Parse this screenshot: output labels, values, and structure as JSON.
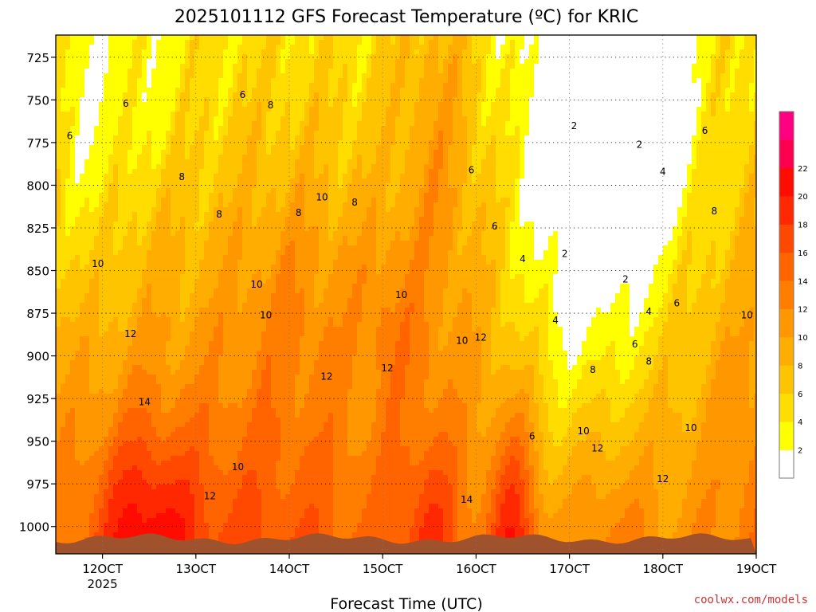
{
  "chart_data": {
    "type": "heatmap",
    "title": "2025101112 GFS Forecast Temperature (ºC) for KRIC",
    "xlabel": "Forecast Time (UTC)",
    "ylabel": "",
    "x_ticks": [
      {
        "label": "12OCT",
        "sub": "2025",
        "day": 12
      },
      {
        "label": "13OCT",
        "sub": "",
        "day": 13
      },
      {
        "label": "14OCT",
        "sub": "",
        "day": 14
      },
      {
        "label": "15OCT",
        "sub": "",
        "day": 15
      },
      {
        "label": "16OCT",
        "sub": "",
        "day": 16
      },
      {
        "label": "17OCT",
        "sub": "",
        "day": 17
      },
      {
        "label": "18OCT",
        "sub": "",
        "day": 18
      },
      {
        "label": "19OCT",
        "sub": "",
        "day": 19
      }
    ],
    "y_ticks": [
      725,
      750,
      775,
      800,
      825,
      850,
      875,
      900,
      925,
      950,
      975,
      1000
    ],
    "xlim": [
      11.5,
      19.0
    ],
    "ylim_hPa": [
      712,
      1016
    ],
    "grid": true,
    "colorbar": {
      "labels": [
        2,
        4,
        6,
        8,
        10,
        12,
        14,
        16,
        18,
        20,
        22
      ],
      "levels": [
        0,
        2,
        4,
        6,
        8,
        10,
        12,
        14,
        16,
        18,
        20,
        22,
        24
      ],
      "colors": [
        "#ffffff",
        "#ffff00",
        "#ffdd00",
        "#ffc400",
        "#ffad00",
        "#ff9700",
        "#ff7e00",
        "#ff6400",
        "#ff4800",
        "#ff2800",
        "#ff0c00",
        "#ff0050",
        "#ff0080"
      ]
    },
    "ground_color": "#a0522d",
    "contour_labels": [
      {
        "text": "6",
        "day": 11.65,
        "p": 773
      },
      {
        "text": "6",
        "day": 12.25,
        "p": 754
      },
      {
        "text": "6",
        "day": 13.5,
        "p": 749
      },
      {
        "text": "6",
        "day": 15.95,
        "p": 793
      },
      {
        "text": "6",
        "day": 16.2,
        "p": 826
      },
      {
        "text": "6",
        "day": 18.45,
        "p": 770
      },
      {
        "text": "6",
        "day": 17.7,
        "p": 895
      },
      {
        "text": "6",
        "day": 18.15,
        "p": 871
      },
      {
        "text": "6",
        "day": 16.6,
        "p": 949
      },
      {
        "text": "8",
        "day": 12.85,
        "p": 797
      },
      {
        "text": "8",
        "day": 13.25,
        "p": 819
      },
      {
        "text": "8",
        "day": 13.8,
        "p": 755
      },
      {
        "text": "8",
        "day": 14.1,
        "p": 818
      },
      {
        "text": "8",
        "day": 14.7,
        "p": 812
      },
      {
        "text": "8",
        "day": 18.55,
        "p": 817
      },
      {
        "text": "8",
        "day": 17.25,
        "p": 910
      },
      {
        "text": "8",
        "day": 17.85,
        "p": 905
      },
      {
        "text": "10",
        "day": 11.95,
        "p": 848
      },
      {
        "text": "10",
        "day": 13.65,
        "p": 860
      },
      {
        "text": "10",
        "day": 13.75,
        "p": 878
      },
      {
        "text": "10",
        "day": 14.35,
        "p": 809
      },
      {
        "text": "10",
        "day": 15.2,
        "p": 866
      },
      {
        "text": "10",
        "day": 15.85,
        "p": 893
      },
      {
        "text": "10",
        "day": 17.15,
        "p": 946
      },
      {
        "text": "10",
        "day": 18.3,
        "p": 944
      },
      {
        "text": "10",
        "day": 18.9,
        "p": 878
      },
      {
        "text": "10",
        "day": 13.45,
        "p": 967
      },
      {
        "text": "12",
        "day": 12.3,
        "p": 889
      },
      {
        "text": "12",
        "day": 14.4,
        "p": 914
      },
      {
        "text": "12",
        "day": 15.05,
        "p": 909
      },
      {
        "text": "12",
        "day": 16.05,
        "p": 891
      },
      {
        "text": "12",
        "day": 17.3,
        "p": 956
      },
      {
        "text": "12",
        "day": 18.0,
        "p": 974
      },
      {
        "text": "12",
        "day": 13.15,
        "p": 984
      },
      {
        "text": "14",
        "day": 12.45,
        "p": 929
      },
      {
        "text": "14",
        "day": 15.9,
        "p": 986
      },
      {
        "text": "4",
        "day": 16.5,
        "p": 845
      },
      {
        "text": "4",
        "day": 16.85,
        "p": 881
      },
      {
        "text": "4",
        "day": 18.0,
        "p": 794
      },
      {
        "text": "4",
        "day": 17.85,
        "p": 876
      },
      {
        "text": "2",
        "day": 17.05,
        "p": 767
      },
      {
        "text": "2",
        "day": 17.75,
        "p": 778
      },
      {
        "text": "2",
        "day": 16.95,
        "p": 842
      },
      {
        "text": "2",
        "day": 17.6,
        "p": 857
      }
    ]
  },
  "credit": "coolwx.com/models"
}
